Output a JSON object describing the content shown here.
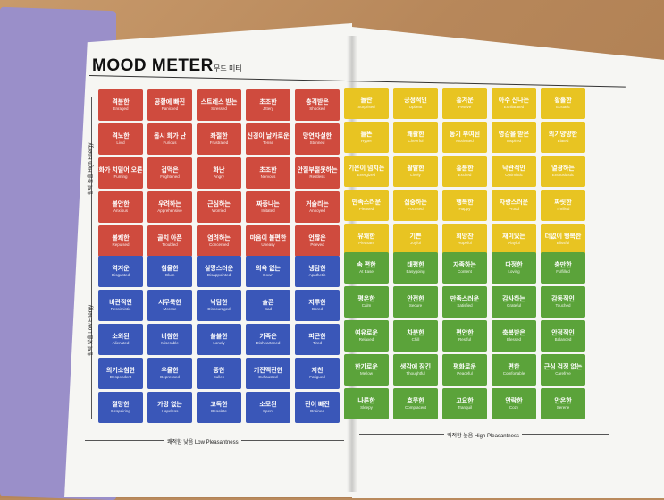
{
  "header": {
    "title": "MOOD METER",
    "subtitle": "무드 미터"
  },
  "axes": {
    "high_energy": "활력 높음 High Energy",
    "low_energy": "활력 낮음 Low Energy",
    "low_pleasantness": "쾌적함 낮음 Low Pleasantness",
    "high_pleasantness": "쾌적함 높음 High Pleasantness"
  },
  "colors": {
    "red": "#cf4b3e",
    "yellow": "#e8c422",
    "blue": "#3a57b8",
    "green": "#5ba33a"
  },
  "quadrants": {
    "red": [
      [
        "격분한",
        "Enraged"
      ],
      [
        "공황에 빠진",
        "Panicked"
      ],
      [
        "스트레스 받는",
        "Stressed"
      ],
      [
        "초조한",
        "Jittery"
      ],
      [
        "충격받은",
        "Shocked"
      ],
      [
        "격노한",
        "Livid"
      ],
      [
        "몹시 화가 난",
        "Furious"
      ],
      [
        "좌절한",
        "Frustrated"
      ],
      [
        "신경이 날카로운",
        "Tense"
      ],
      [
        "망연자실한",
        "Stunned"
      ],
      [
        "화가 치밀어 오른",
        "Fuming"
      ],
      [
        "겁먹은",
        "Frightened"
      ],
      [
        "화난",
        "Angry"
      ],
      [
        "초조한",
        "Nervous"
      ],
      [
        "안절부절못하는",
        "Restless"
      ],
      [
        "불안한",
        "Anxious"
      ],
      [
        "우려하는",
        "Apprehensive"
      ],
      [
        "근심하는",
        "Worried"
      ],
      [
        "짜증나는",
        "Irritated"
      ],
      [
        "거슬리는",
        "Annoyed"
      ],
      [
        "불쾌한",
        "Repulsed"
      ],
      [
        "골치 아픈",
        "Troubled"
      ],
      [
        "염려하는",
        "Concerned"
      ],
      [
        "마음이 불편한",
        "Uneasy"
      ],
      [
        "언짢은",
        "Peeved"
      ]
    ],
    "yellow": [
      [
        "놀란",
        "Surprised"
      ],
      [
        "긍정적인",
        "Upbeat"
      ],
      [
        "흥겨운",
        "Festive"
      ],
      [
        "아주 신나는",
        "Exhilarated"
      ],
      [
        "황홀한",
        "Ecstatic"
      ],
      [
        "들뜬",
        "Hyper"
      ],
      [
        "쾌활한",
        "Cheerful"
      ],
      [
        "동기 부여된",
        "Motivated"
      ],
      [
        "영감을 받은",
        "Inspired"
      ],
      [
        "의기양양한",
        "Elated"
      ],
      [
        "기운이 넘치는",
        "Energized"
      ],
      [
        "활발한",
        "Lively"
      ],
      [
        "흥분한",
        "Excited"
      ],
      [
        "낙관적인",
        "Optimistic"
      ],
      [
        "열광하는",
        "Enthusiastic"
      ],
      [
        "만족스러운",
        "Pleased"
      ],
      [
        "집중하는",
        "Focused"
      ],
      [
        "행복한",
        "Happy"
      ],
      [
        "자랑스러운",
        "Proud"
      ],
      [
        "짜릿한",
        "Thrilled"
      ],
      [
        "유쾌한",
        "Pleasant"
      ],
      [
        "기쁜",
        "Joyful"
      ],
      [
        "희망찬",
        "Hopeful"
      ],
      [
        "재미있는",
        "Playful"
      ],
      [
        "더없이 행복한",
        "Blissful"
      ]
    ],
    "blue": [
      [
        "역겨운",
        "Disgusted"
      ],
      [
        "침울한",
        "Glum"
      ],
      [
        "실망스러운",
        "Disappointed"
      ],
      [
        "의욕 없는",
        "Down"
      ],
      [
        "냉담한",
        "Apathetic"
      ],
      [
        "비관적인",
        "Pessimistic"
      ],
      [
        "시무룩한",
        "Morose"
      ],
      [
        "낙담한",
        "Discouraged"
      ],
      [
        "슬픈",
        "Sad"
      ],
      [
        "지루한",
        "Bored"
      ],
      [
        "소외된",
        "Alienated"
      ],
      [
        "비참한",
        "Miserable"
      ],
      [
        "쓸쓸한",
        "Lonely"
      ],
      [
        "기죽은",
        "Disheartened"
      ],
      [
        "피곤한",
        "Tired"
      ],
      [
        "의기소침한",
        "Despondent"
      ],
      [
        "우울한",
        "Depressed"
      ],
      [
        "뚱한",
        "Sullen"
      ],
      [
        "기진맥진한",
        "Exhausted"
      ],
      [
        "지친",
        "Fatigued"
      ],
      [
        "절망한",
        "Despairing"
      ],
      [
        "가망 없는",
        "Hopeless"
      ],
      [
        "고독한",
        "Desolate"
      ],
      [
        "소모된",
        "Spent"
      ],
      [
        "진이 빠진",
        "Drained"
      ]
    ],
    "green": [
      [
        "속 편한",
        "At Ease"
      ],
      [
        "태평한",
        "Easygoing"
      ],
      [
        "자족하는",
        "Content"
      ],
      [
        "다정한",
        "Loving"
      ],
      [
        "충만한",
        "Fulfilled"
      ],
      [
        "평온한",
        "Calm"
      ],
      [
        "안전한",
        "Secure"
      ],
      [
        "만족스러운",
        "Satisfied"
      ],
      [
        "감사하는",
        "Grateful"
      ],
      [
        "감동적인",
        "Touched"
      ],
      [
        "여유로운",
        "Relaxed"
      ],
      [
        "차분한",
        "Chill"
      ],
      [
        "편안한",
        "Restful"
      ],
      [
        "축복받은",
        "Blessed"
      ],
      [
        "안정적인",
        "Balanced"
      ],
      [
        "한가로운",
        "Mellow"
      ],
      [
        "생각에 잠긴",
        "Thoughtful"
      ],
      [
        "평화로운",
        "Peaceful"
      ],
      [
        "편한",
        "Comfortable"
      ],
      [
        "근심 걱정 없는",
        "Carefree"
      ],
      [
        "나른한",
        "Sleepy"
      ],
      [
        "흐뭇한",
        "Complacent"
      ],
      [
        "고요한",
        "Tranquil"
      ],
      [
        "안락한",
        "Cozy"
      ],
      [
        "안온한",
        "Serene"
      ]
    ]
  }
}
